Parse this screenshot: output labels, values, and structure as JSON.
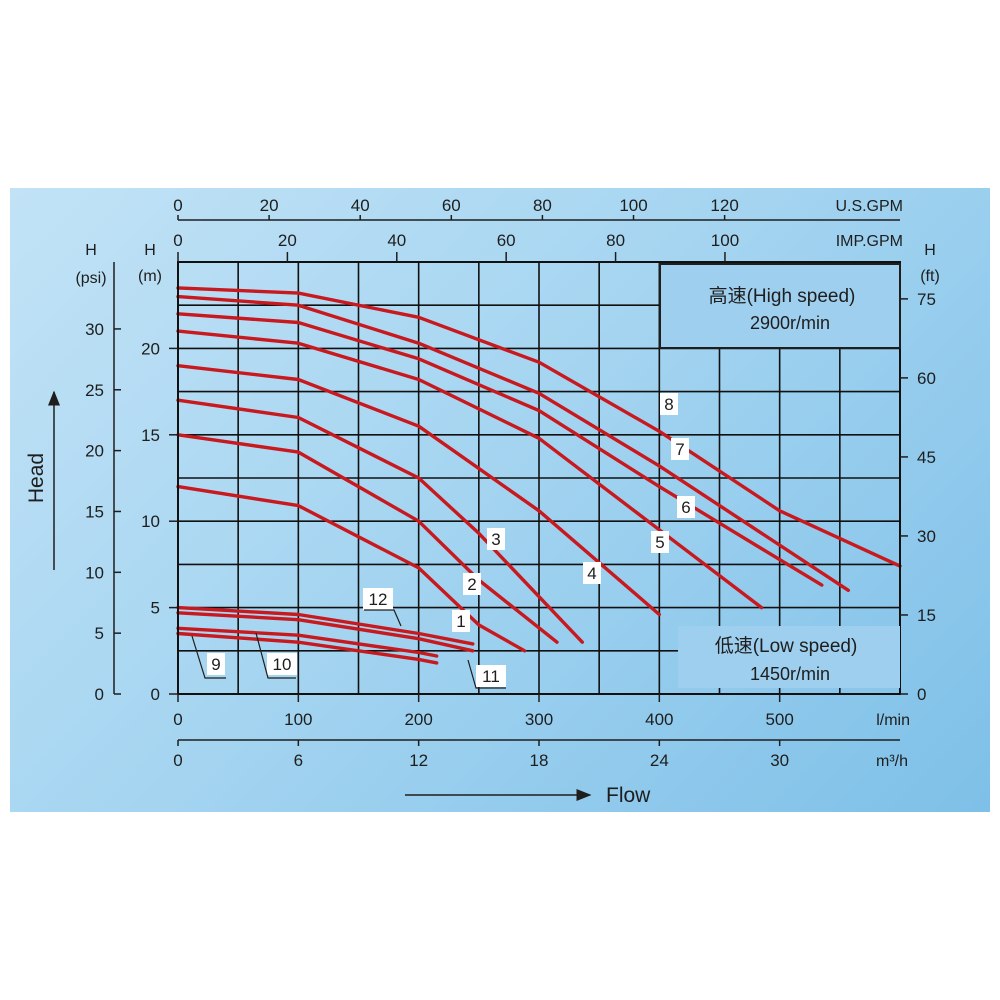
{
  "chart_data": {
    "type": "line",
    "title": "",
    "xlabel": "Flow",
    "ylabel": "Head",
    "x_axes": {
      "lmin": {
        "label": "l/min",
        "ticks": [
          0,
          100,
          200,
          300,
          400,
          500
        ],
        "range": [
          0,
          600
        ]
      },
      "m3h": {
        "label": "m³/h",
        "ticks": [
          0,
          6,
          12,
          18,
          24,
          30
        ],
        "range": [
          0,
          36
        ]
      },
      "usgpm": {
        "label": "U.S.GPM",
        "ticks": [
          0,
          20,
          40,
          60,
          80,
          100,
          120
        ],
        "range": [
          0,
          158.5
        ]
      },
      "impgpm": {
        "label": "IMP.GPM",
        "ticks": [
          0,
          20,
          40,
          60,
          80,
          100
        ],
        "range": [
          0,
          132
        ]
      }
    },
    "y_axes": {
      "psi": {
        "label_top": "H",
        "label_unit": "(psi)",
        "ticks": [
          0,
          5,
          10,
          15,
          20,
          25,
          30
        ],
        "range": [
          0,
          35.5
        ]
      },
      "m": {
        "label_top": "H",
        "label_unit": "(m)",
        "ticks": [
          0,
          5,
          10,
          15,
          20
        ],
        "range": [
          0,
          25
        ]
      },
      "ft": {
        "label_top": "H",
        "label_unit": "(ft)",
        "ticks": [
          0,
          15,
          30,
          45,
          60,
          75
        ],
        "range": [
          0,
          82
        ]
      }
    },
    "grid": true,
    "legend_high": {
      "line1": "高速(High speed)",
      "line2": "2900r/min",
      "position": "top-right"
    },
    "legend_low": {
      "line1": "低速(Low speed)",
      "line2": "1450r/min",
      "position": "bottom-right"
    },
    "x_unit": "l/min",
    "y_unit": "m",
    "series": [
      {
        "name": "1",
        "points": [
          [
            0,
            12
          ],
          [
            100,
            10.9
          ],
          [
            200,
            7.3
          ],
          [
            250,
            4.0
          ],
          [
            288,
            2.5
          ]
        ]
      },
      {
        "name": "2",
        "points": [
          [
            0,
            15
          ],
          [
            100,
            14.0
          ],
          [
            200,
            10.0
          ],
          [
            250,
            6.6
          ],
          [
            315,
            3.0
          ]
        ]
      },
      {
        "name": "3",
        "points": [
          [
            0,
            17
          ],
          [
            100,
            16.0
          ],
          [
            200,
            12.5
          ],
          [
            250,
            9.3
          ],
          [
            336,
            3.0
          ]
        ]
      },
      {
        "name": "4",
        "points": [
          [
            0,
            19
          ],
          [
            100,
            18.2
          ],
          [
            200,
            15.5
          ],
          [
            300,
            10.6
          ],
          [
            400,
            4.6
          ]
        ]
      },
      {
        "name": "5",
        "points": [
          [
            0,
            21
          ],
          [
            100,
            20.3
          ],
          [
            200,
            18.2
          ],
          [
            300,
            14.8
          ],
          [
            400,
            9.5
          ],
          [
            485,
            5.0
          ]
        ]
      },
      {
        "name": "6",
        "points": [
          [
            0,
            22
          ],
          [
            100,
            21.5
          ],
          [
            200,
            19.4
          ],
          [
            300,
            16.4
          ],
          [
            400,
            12.0
          ],
          [
            535,
            6.3
          ]
        ]
      },
      {
        "name": "7",
        "points": [
          [
            0,
            23
          ],
          [
            100,
            22.5
          ],
          [
            200,
            20.3
          ],
          [
            300,
            17.4
          ],
          [
            400,
            13.2
          ],
          [
            557,
            6.0
          ]
        ]
      },
      {
        "name": "8",
        "points": [
          [
            0,
            23.5
          ],
          [
            100,
            23.2
          ],
          [
            200,
            21.8
          ],
          [
            300,
            19.2
          ],
          [
            400,
            15.2
          ],
          [
            500,
            10.6
          ],
          [
            600,
            7.4
          ]
        ]
      },
      {
        "name": "9",
        "points": [
          [
            0,
            3.5
          ],
          [
            100,
            3.0
          ],
          [
            200,
            2.0
          ],
          [
            215,
            1.8
          ]
        ]
      },
      {
        "name": "10",
        "points": [
          [
            0,
            3.8
          ],
          [
            100,
            3.4
          ],
          [
            200,
            2.4
          ],
          [
            215,
            2.2
          ]
        ]
      },
      {
        "name": "11",
        "points": [
          [
            0,
            4.7
          ],
          [
            100,
            4.3
          ],
          [
            200,
            3.2
          ],
          [
            245,
            2.5
          ]
        ]
      },
      {
        "name": "12",
        "points": [
          [
            0,
            5.0
          ],
          [
            100,
            4.6
          ],
          [
            200,
            3.5
          ],
          [
            245,
            2.9
          ]
        ]
      }
    ],
    "curve_color": "#c8191e",
    "grid_color": "#111111",
    "background_colors": [
      "#c2e3f6",
      "#7ec0e8"
    ]
  }
}
